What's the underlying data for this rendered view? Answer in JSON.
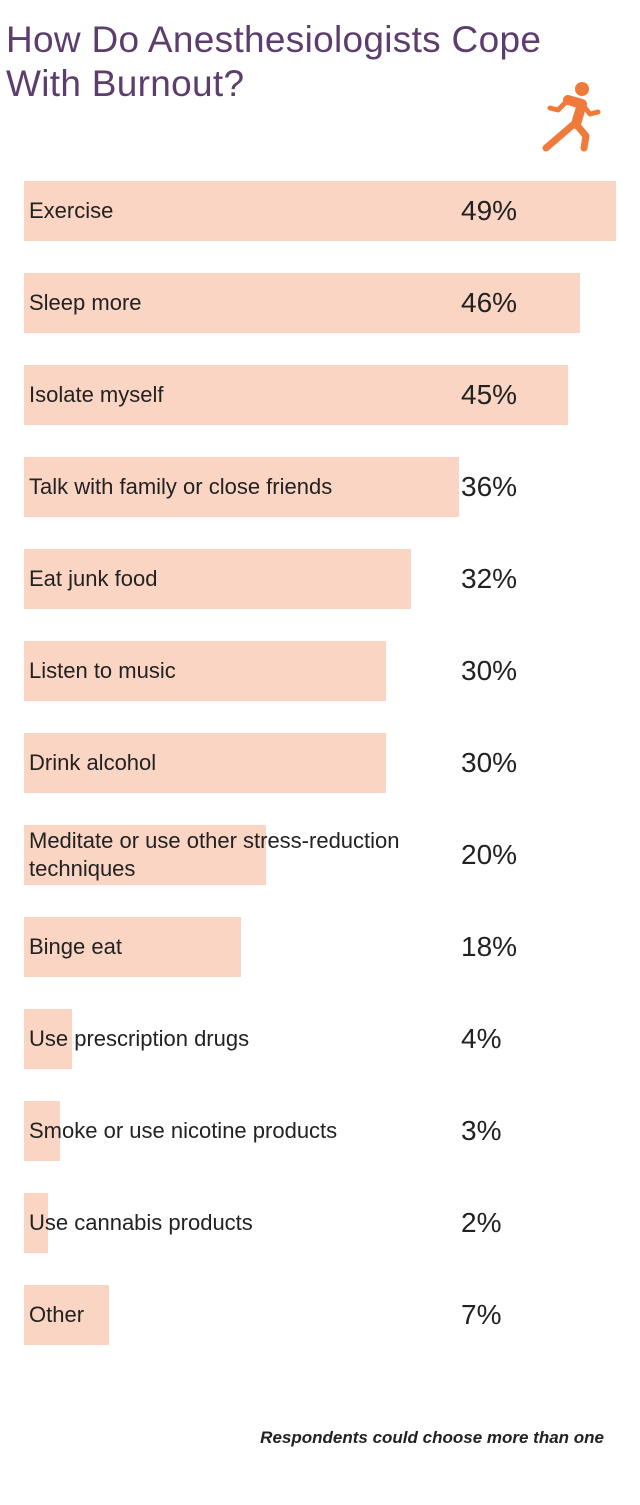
{
  "chart_data": {
    "type": "bar",
    "orientation": "horizontal",
    "title": "How Do Anesthesiologists Cope With Burnout?",
    "categories": [
      "Exercise",
      "Sleep more",
      "Isolate myself",
      "Talk with family or close friends",
      "Eat junk food",
      "Listen to music",
      "Drink alcohol",
      "Meditate or use other stress-reduction techniques",
      "Binge eat",
      "Use prescription drugs",
      "Smoke or use nicotine products",
      "Use cannabis products",
      "Other"
    ],
    "values": [
      49,
      46,
      45,
      36,
      32,
      30,
      30,
      20,
      18,
      4,
      3,
      2,
      7
    ],
    "value_labels": [
      "49%",
      "46%",
      "45%",
      "36%",
      "32%",
      "30%",
      "30%",
      "20%",
      "18%",
      "4%",
      "3%",
      "2%",
      "7%"
    ],
    "color": "#fbd5c4",
    "note": "Respondents could choose more than one"
  }
}
